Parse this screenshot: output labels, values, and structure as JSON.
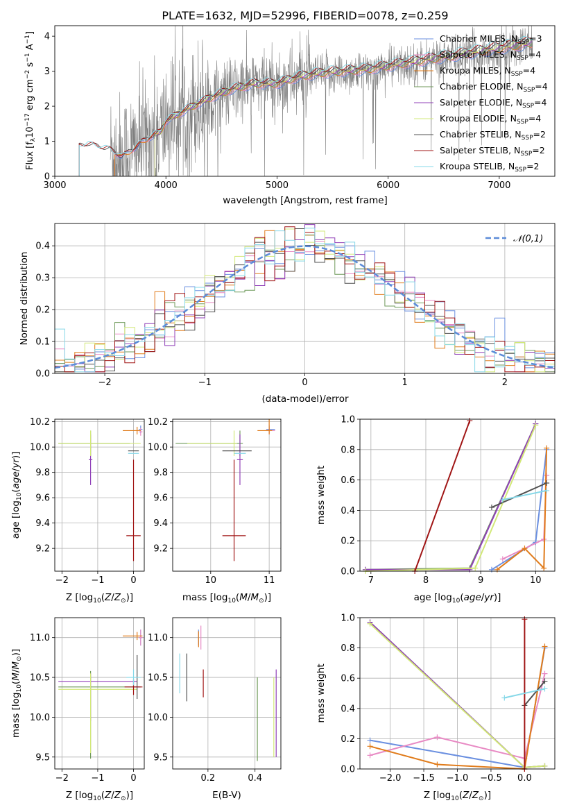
{
  "figure_title": "PLATE=1632, MJD=52996, FIBERID=0078, z=0.259",
  "models": [
    {
      "name": "Chabrier MILES",
      "nssp": "3",
      "color": "#6a8fe0"
    },
    {
      "name": "Salpeter MILES",
      "nssp": "4",
      "color": "#e88ac4"
    },
    {
      "name": "Kroupa MILES",
      "nssp": "4",
      "color": "#e07b1a"
    },
    {
      "name": "Chabrier ELODIE",
      "nssp": "4",
      "color": "#6f9a5a"
    },
    {
      "name": "Salpeter ELODIE",
      "nssp": "4",
      "color": "#9040b8"
    },
    {
      "name": "Kroupa ELODIE",
      "nssp": "4",
      "color": "#d2e878"
    },
    {
      "name": "Chabrier STELIB",
      "nssp": "2",
      "color": "#505050"
    },
    {
      "name": "Salpeter STELIB",
      "nssp": "2",
      "color": "#a01515"
    },
    {
      "name": "Kroupa STELIB",
      "nssp": "2",
      "color": "#86d8e8"
    }
  ],
  "chart_data": [
    {
      "id": "spectrum",
      "type": "line",
      "title": "PLATE=1632, MJD=52996, FIBERID=0078, z=0.259",
      "xlabel": "wavelength [Angstrom, rest frame]",
      "ylabel": "Flux [f_λ 10^-17 erg cm^-2 s^-1 A^-1]",
      "xlim": [
        3000,
        7500
      ],
      "ylim": [
        0,
        4.3
      ],
      "xticks": [
        "3000",
        "4000",
        "5000",
        "6000",
        "7000"
      ],
      "yticks": [
        "0",
        "1",
        "2",
        "3",
        "4"
      ],
      "legend": "top-right",
      "data_color": "#808080",
      "data_range": [
        3500,
        7300
      ],
      "model_range": [
        3220,
        7300
      ],
      "continuum": {
        "x": [
          3220,
          3300,
          3500,
          3600,
          3700,
          3800,
          3950,
          4000,
          4200,
          4400,
          4600,
          4800,
          5000,
          5200,
          5400,
          5600,
          5800,
          6000,
          6200,
          6400,
          6600,
          6800,
          7000,
          7200,
          7300
        ],
        "y": [
          0.85,
          0.9,
          0.75,
          0.55,
          0.75,
          1.0,
          1.25,
          1.55,
          1.9,
          2.2,
          2.45,
          2.6,
          2.6,
          2.8,
          2.9,
          2.95,
          3.0,
          3.1,
          3.2,
          3.3,
          3.4,
          3.5,
          3.6,
          3.7,
          3.75
        ]
      },
      "grid": false
    },
    {
      "id": "residuals",
      "type": "histogram",
      "xlabel": "(data-model)/error",
      "ylabel": "Normed distribution",
      "xlim": [
        -2.5,
        2.5
      ],
      "ylim": [
        0,
        0.47
      ],
      "xticks": [
        "−2",
        "−1",
        "0",
        "1",
        "2"
      ],
      "yticks": [
        "0.0",
        "0.1",
        "0.2",
        "0.3",
        "0.4"
      ],
      "reference": {
        "label": "𝒩(0,1)",
        "color": "#5b8bd8"
      },
      "legend": "top-right",
      "grid": true
    },
    {
      "id": "age_vs_Z",
      "type": "errorbar",
      "xlabel": "Z [log10(Z/Z⊙)]",
      "ylabel": "age  [log10(age/yr)]",
      "xlim": [
        -2.2,
        0.3
      ],
      "ylim": [
        9.02,
        10.22
      ],
      "xticks": [
        "−2",
        "−1",
        "0"
      ],
      "yticks": [
        "9.2",
        "9.4",
        "9.6",
        "9.8",
        "10.0",
        "10.2"
      ],
      "points": [
        {
          "m": 0,
          "x": 0.2,
          "y": 10.14,
          "xe": [
            0.05,
            0.05
          ],
          "ye": [
            0.03,
            0.03
          ]
        },
        {
          "m": 1,
          "x": 0.2,
          "y": 10.12,
          "xe": [
            0.05,
            0.05
          ],
          "ye": [
            0.03,
            0.03
          ]
        },
        {
          "m": 2,
          "x": 0.1,
          "y": 10.13,
          "xe": [
            0.4,
            0.1
          ],
          "ye": [
            0.03,
            0.03
          ]
        },
        {
          "m": 3,
          "x": -1.2,
          "y": 10.03,
          "xe": [
            0.9,
            1.1
          ],
          "ye": [
            0.1,
            0.1
          ]
        },
        {
          "m": 4,
          "x": -1.2,
          "y": 9.9,
          "xe": [
            0.05,
            0.05
          ],
          "ye": [
            0.2,
            0.2
          ]
        },
        {
          "m": 5,
          "x": -1.2,
          "y": 10.03,
          "xe": [
            0.9,
            1.4
          ],
          "ye": [
            0.1,
            0.1
          ]
        },
        {
          "m": 6,
          "x": 0.0,
          "y": 9.97,
          "xe": [
            0.15,
            0.15
          ],
          "ye": [
            0.0,
            0.0
          ]
        },
        {
          "m": 7,
          "x": 0.0,
          "y": 9.3,
          "xe": [
            0.2,
            0.2
          ],
          "ye": [
            0.2,
            0.6
          ]
        },
        {
          "m": 8,
          "x": 0.0,
          "y": 9.95,
          "xe": [
            0.15,
            0.15
          ],
          "ye": [
            0.0,
            0.0
          ]
        }
      ]
    },
    {
      "id": "age_vs_mass",
      "type": "errorbar",
      "xlabel": "mass [log10(M/M⊙)]",
      "ylabel": "",
      "xlim": [
        9.35,
        11.2
      ],
      "ylim": [
        9.02,
        10.22
      ],
      "xticks": [
        "10",
        "11"
      ],
      "yticks": [
        "9.2",
        "9.4",
        "9.6",
        "9.8",
        "10.0",
        "10.2"
      ],
      "points": [
        {
          "m": 0,
          "x": 11.0,
          "y": 10.14,
          "xe": [
            0.05,
            0.1
          ],
          "ye": [
            0.03,
            0.03
          ]
        },
        {
          "m": 1,
          "x": 11.0,
          "y": 10.13,
          "xe": [
            0.05,
            0.1
          ],
          "ye": [
            0.03,
            0.03
          ]
        },
        {
          "m": 2,
          "x": 11.0,
          "y": 10.13,
          "xe": [
            0.2,
            0.05
          ],
          "ye": [
            0.03,
            0.88
          ]
        },
        {
          "m": 3,
          "x": 10.5,
          "y": 10.03,
          "xe": [
            1.1,
            0.05
          ],
          "ye": [
            0.1,
            0.1
          ]
        },
        {
          "m": 4,
          "x": 10.5,
          "y": 9.9,
          "xe": [
            0.05,
            0.05
          ],
          "ye": [
            0.2,
            0.2
          ]
        },
        {
          "m": 5,
          "x": 10.4,
          "y": 10.03,
          "xe": [
            0.8,
            0.05
          ],
          "ye": [
            0.1,
            0.1
          ]
        },
        {
          "m": 6,
          "x": 10.4,
          "y": 9.97,
          "xe": [
            0.2,
            0.3
          ],
          "ye": [
            0.0,
            0.0
          ]
        },
        {
          "m": 7,
          "x": 10.4,
          "y": 9.3,
          "xe": [
            0.2,
            0.2
          ],
          "ye": [
            0.2,
            0.6
          ]
        },
        {
          "m": 8,
          "x": 10.5,
          "y": 9.95,
          "xe": [
            0.1,
            0.1
          ],
          "ye": [
            0.0,
            0.0
          ]
        }
      ]
    },
    {
      "id": "mass_weight_vs_age",
      "type": "line",
      "xlabel": "age  [log10(age/yr)]",
      "ylabel": "mass weight",
      "xlim": [
        6.8,
        10.35
      ],
      "ylim": [
        0,
        1
      ],
      "xticks": [
        "7",
        "8",
        "9",
        "10"
      ],
      "yticks": [
        "0.0",
        "0.2",
        "0.4",
        "0.6",
        "0.8",
        "1.0"
      ],
      "series": [
        {
          "m": 0,
          "x": [
            9.2,
            10.0,
            10.2
          ],
          "y": [
            0.01,
            0.19,
            0.8
          ]
        },
        {
          "m": 1,
          "x": [
            9.4,
            10.15,
            10.2
          ],
          "y": [
            0.08,
            0.21,
            0.63
          ]
        },
        {
          "m": 2,
          "x": [
            9.3,
            9.8,
            10.15,
            10.2
          ],
          "y": [
            0.01,
            0.15,
            0.02,
            0.81
          ]
        },
        {
          "m": 3,
          "x": [
            6.9,
            8.8,
            10.0
          ],
          "y": [
            0.01,
            0.02,
            0.97
          ]
        },
        {
          "m": 4,
          "x": [
            6.9,
            8.8,
            10.0
          ],
          "y": [
            0.01,
            0.01,
            0.97
          ]
        },
        {
          "m": 5,
          "x": [
            6.9,
            8.9,
            10.0
          ],
          "y": [
            0.0,
            0.02,
            0.96
          ]
        },
        {
          "m": 6,
          "x": [
            9.2,
            10.2
          ],
          "y": [
            0.42,
            0.58
          ]
        },
        {
          "m": 7,
          "x": [
            7.8,
            8.8
          ],
          "y": [
            0.0,
            0.99
          ]
        },
        {
          "m": 8,
          "x": [
            9.4,
            10.2
          ],
          "y": [
            0.47,
            0.53
          ]
        }
      ]
    },
    {
      "id": "mass_vs_Z",
      "type": "errorbar",
      "xlabel": "Z [log10(Z/Z⊙)]",
      "ylabel": "mass [log10(M/M⊙)]",
      "xlim": [
        -2.2,
        0.3
      ],
      "ylim": [
        9.35,
        11.25
      ],
      "xticks": [
        "−2",
        "−1",
        "0"
      ],
      "yticks": [
        "9.5",
        "10.0",
        "10.5",
        "11.0"
      ],
      "points": [
        {
          "m": 0,
          "x": 0.2,
          "y": 11.0,
          "xe": [
            0.05,
            0.05
          ],
          "ye": [
            0.1,
            0.1
          ]
        },
        {
          "m": 1,
          "x": 0.2,
          "y": 11.0,
          "xe": [
            0.05,
            0.05
          ],
          "ye": [
            0.1,
            0.1
          ]
        },
        {
          "m": 2,
          "x": 0.1,
          "y": 11.02,
          "xe": [
            0.4,
            0.15
          ],
          "ye": [
            0.05,
            0.05
          ]
        },
        {
          "m": 3,
          "x": -1.2,
          "y": 10.38,
          "xe": [
            0.9,
            1.2
          ],
          "ye": [
            0.9,
            0.2
          ]
        },
        {
          "m": 4,
          "x": -1.2,
          "y": 10.45,
          "xe": [
            0.9,
            1.3
          ],
          "ye": [
            0.5,
            0.1
          ]
        },
        {
          "m": 5,
          "x": -1.2,
          "y": 10.35,
          "xe": [
            0.9,
            1.3
          ],
          "ye": [
            0.8,
            0.2
          ]
        },
        {
          "m": 6,
          "x": 0.1,
          "y": 10.38,
          "xe": [
            0.1,
            0.1
          ],
          "ye": [
            0.15,
            0.4
          ]
        },
        {
          "m": 7,
          "x": 0.0,
          "y": 10.38,
          "xe": [
            0.25,
            0.25
          ],
          "ye": [
            0.1,
            0.1
          ]
        },
        {
          "m": 8,
          "x": 0.0,
          "y": 10.5,
          "xe": [
            0.2,
            0.2
          ],
          "ye": [
            0.1,
            0.1
          ]
        }
      ]
    },
    {
      "id": "mass_vs_ebv",
      "type": "errorbar",
      "xlabel": "E(B-V)",
      "ylabel": "",
      "xlim": [
        0.05,
        0.51
      ],
      "ylim": [
        9.35,
        11.25
      ],
      "xticks": [
        "0.2",
        "0.4"
      ],
      "yticks": [
        "9.5",
        "10.0",
        "10.5",
        "11.0"
      ],
      "points": [
        {
          "m": 0,
          "x": 0.16,
          "y": 11.0,
          "xe": [
            0,
            0
          ],
          "ye": [
            0.1,
            0.1
          ]
        },
        {
          "m": 1,
          "x": 0.17,
          "y": 11.0,
          "xe": [
            0,
            0
          ],
          "ye": [
            0.15,
            0.15
          ]
        },
        {
          "m": 2,
          "x": 0.16,
          "y": 10.98,
          "xe": [
            0,
            0
          ],
          "ye": [
            0.1,
            0.1
          ]
        },
        {
          "m": 3,
          "x": 0.41,
          "y": 10.0,
          "xe": [
            0,
            0
          ],
          "ye": [
            0.55,
            0.5
          ]
        },
        {
          "m": 4,
          "x": 0.49,
          "y": 10.1,
          "xe": [
            0,
            0
          ],
          "ye": [
            0.6,
            0.5
          ]
        },
        {
          "m": 5,
          "x": 0.48,
          "y": 10.0,
          "xe": [
            0,
            0
          ],
          "ye": [
            0.5,
            0.5
          ]
        },
        {
          "m": 6,
          "x": 0.11,
          "y": 10.5,
          "xe": [
            0,
            0
          ],
          "ye": [
            0.3,
            0.3
          ]
        },
        {
          "m": 7,
          "x": 0.18,
          "y": 10.45,
          "xe": [
            0,
            0
          ],
          "ye": [
            0.2,
            0.15
          ]
        },
        {
          "m": 8,
          "x": 0.08,
          "y": 10.5,
          "xe": [
            0,
            0
          ],
          "ye": [
            0.2,
            0.3
          ]
        }
      ]
    },
    {
      "id": "mass_weight_vs_Z",
      "type": "line",
      "xlabel": "Z [log10(Z/Z⊙)]",
      "ylabel": "mass weight",
      "xlim": [
        -2.45,
        0.45
      ],
      "ylim": [
        0,
        1
      ],
      "xticks": [
        "−2.0",
        "−1.5",
        "−1.0",
        "−0.5",
        "0.0"
      ],
      "yticks": [
        "0.0",
        "0.2",
        "0.4",
        "0.6",
        "0.8",
        "1.0"
      ],
      "series": [
        {
          "m": 0,
          "x": [
            -2.3,
            0.0,
            0.3
          ],
          "y": [
            0.19,
            0.01,
            0.8
          ]
        },
        {
          "m": 1,
          "x": [
            -2.3,
            -1.3,
            0.0,
            0.3
          ],
          "y": [
            0.09,
            0.21,
            0.07,
            0.63
          ]
        },
        {
          "m": 2,
          "x": [
            -2.3,
            -1.3,
            0.0,
            0.3
          ],
          "y": [
            0.15,
            0.03,
            0.0,
            0.81
          ]
        },
        {
          "m": 3,
          "x": [
            -2.3,
            0.0,
            0.3
          ],
          "y": [
            0.97,
            0.01,
            0.02
          ]
        },
        {
          "m": 4,
          "x": [
            -2.3,
            0.0,
            0.3
          ],
          "y": [
            0.97,
            0.01,
            0.02
          ]
        },
        {
          "m": 5,
          "x": [
            -2.3,
            0.0,
            0.3
          ],
          "y": [
            0.96,
            0.01,
            0.02
          ]
        },
        {
          "m": 6,
          "x": [
            0.0,
            0.3
          ],
          "y": [
            0.42,
            0.58
          ]
        },
        {
          "m": 7,
          "x": [
            0.0,
            0.0
          ],
          "y": [
            0.0,
            0.99
          ]
        },
        {
          "m": 8,
          "x": [
            -0.3,
            0.3
          ],
          "y": [
            0.47,
            0.53
          ]
        }
      ]
    }
  ]
}
